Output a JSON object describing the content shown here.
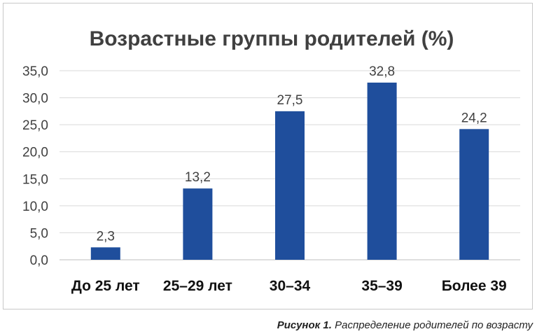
{
  "chart_data": {
    "type": "bar",
    "title": "Возрастные группы родителей (%)",
    "categories": [
      "До 25 лет",
      "25–29 лет",
      "30–34",
      "35–39",
      "Более 39"
    ],
    "values": [
      2.3,
      13.2,
      27.5,
      32.8,
      24.2
    ],
    "data_labels": [
      "2,3",
      "13,2",
      "27,5",
      "32,8",
      "24,2"
    ],
    "yticks": [
      "0,0",
      "5,0",
      "10,0",
      "15,0",
      "20,0",
      "25,0",
      "30,0",
      "35,0"
    ],
    "ylim": [
      0,
      35
    ],
    "ystep": 5,
    "grid": true,
    "legend": "none",
    "bar_color": "#1f4e9c",
    "grid_color": "#d9d9d9"
  },
  "caption": {
    "label": "Рисунок 1.",
    "text": "Распределение родителей по возрасту"
  }
}
